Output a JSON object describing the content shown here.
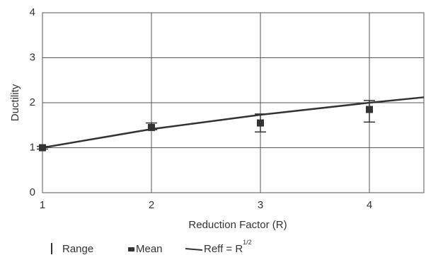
{
  "chart_data": {
    "type": "line",
    "x_label": "Reduction Factor (R)",
    "y_label": "Ductility",
    "xlim": [
      1,
      4.5
    ],
    "ylim": [
      0,
      4
    ],
    "xticks": [
      1,
      2,
      3,
      4
    ],
    "yticks": [
      0,
      1,
      2,
      3,
      4
    ],
    "grid": true,
    "series": [
      {
        "name": "Range",
        "kind": "range",
        "color": "#333333",
        "x": [
          1,
          2,
          3,
          4
        ],
        "low": [
          0.97,
          1.4,
          1.35,
          1.57
        ],
        "high": [
          1.03,
          1.55,
          1.75,
          2.05
        ]
      },
      {
        "name": "Mean",
        "kind": "marker",
        "color": "#333333",
        "x": [
          1,
          2,
          3,
          4
        ],
        "values": [
          1.0,
          1.45,
          1.55,
          1.85
        ]
      },
      {
        "name": "Reff = R",
        "name_superscript": "1/2",
        "kind": "line",
        "color": "#333333",
        "x": [
          1,
          2,
          3,
          4,
          4.5
        ],
        "values": [
          1.0,
          1.414,
          1.732,
          2.0,
          2.121
        ]
      }
    ]
  }
}
